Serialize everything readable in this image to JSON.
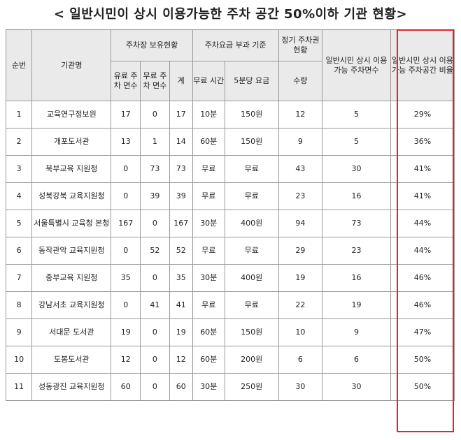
{
  "title": "< 일반시민이 상시 이용가능한 주차 공간 50%이하 기관 현황>",
  "headers": {
    "no": "순번",
    "agency": "기관명",
    "parking_group": "주차장 보유현황",
    "fee_group": "주차요금 부과 기준",
    "pass_group": "정기 주차권 현황",
    "public_spaces": "일반시민 상시 이용가능 주차면수",
    "ratio": "일반시민 상시 이용가능 주차공간 비율",
    "paid": "유료 주차 면수",
    "free": "무료 주차 면수",
    "total": "계",
    "free_time": "무료 시간",
    "fee_5min": "5분당 요금",
    "qty": "수량"
  },
  "rows": [
    {
      "no": "1",
      "agency": "교육연구정보원",
      "paid": "17",
      "free": "0",
      "total": "17",
      "free_time": "10분",
      "fee": "150원",
      "qty": "12",
      "public": "5",
      "ratio": "29%"
    },
    {
      "no": "2",
      "agency": "개포도서관",
      "paid": "13",
      "free": "1",
      "total": "14",
      "free_time": "60분",
      "fee": "150원",
      "qty": "9",
      "public": "5",
      "ratio": "36%"
    },
    {
      "no": "3",
      "agency": "북부교육 지원청",
      "paid": "0",
      "free": "73",
      "total": "73",
      "free_time": "무료",
      "fee": "무료",
      "qty": "43",
      "public": "30",
      "ratio": "41%"
    },
    {
      "no": "4",
      "agency": "성북강북 교육지원청",
      "paid": "0",
      "free": "39",
      "total": "39",
      "free_time": "무료",
      "fee": "무료",
      "qty": "23",
      "public": "16",
      "ratio": "41%"
    },
    {
      "no": "5",
      "agency": "서울특별시 교육청 본청",
      "paid": "167",
      "free": "0",
      "total": "167",
      "free_time": "30분",
      "fee": "400원",
      "qty": "94",
      "public": "73",
      "ratio": "44%"
    },
    {
      "no": "6",
      "agency": "동작관악 교육지원청",
      "paid": "0",
      "free": "52",
      "total": "52",
      "free_time": "무료",
      "fee": "무료",
      "qty": "29",
      "public": "23",
      "ratio": "44%"
    },
    {
      "no": "7",
      "agency": "중부교육 지원청",
      "paid": "35",
      "free": "0",
      "total": "35",
      "free_time": "30분",
      "fee": "400원",
      "qty": "19",
      "public": "16",
      "ratio": "46%"
    },
    {
      "no": "8",
      "agency": "강남서초 교육지원청",
      "paid": "0",
      "free": "41",
      "total": "41",
      "free_time": "무료",
      "fee": "무료",
      "qty": "22",
      "public": "19",
      "ratio": "46%"
    },
    {
      "no": "9",
      "agency": "서대문 도서관",
      "paid": "19",
      "free": "0",
      "total": "19",
      "free_time": "60분",
      "fee": "150원",
      "qty": "10",
      "public": "9",
      "ratio": "47%"
    },
    {
      "no": "10",
      "agency": "도봉도서관",
      "paid": "12",
      "free": "0",
      "total": "12",
      "free_time": "60분",
      "fee": "200원",
      "qty": "6",
      "public": "6",
      "ratio": "50%"
    },
    {
      "no": "11",
      "agency": "성동광진 교육지원청",
      "paid": "60",
      "free": "0",
      "total": "60",
      "free_time": "30분",
      "fee": "250원",
      "qty": "30",
      "public": "30",
      "ratio": "50%"
    }
  ],
  "highlight_color": "#e0262b"
}
